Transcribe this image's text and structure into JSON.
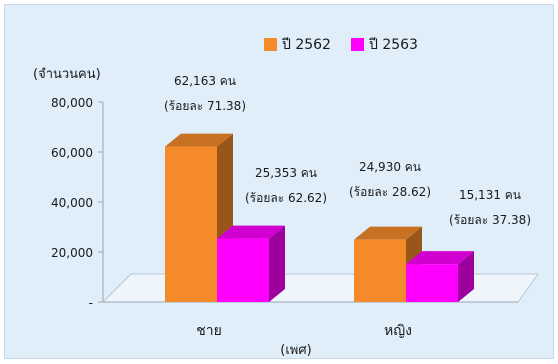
{
  "chart_data": {
    "type": "bar",
    "title": "",
    "ylabel": "(จำนวนคน)",
    "xlabel": "(เพศ)",
    "categories": [
      "ชาย",
      "หญิง"
    ],
    "ylim": [
      0,
      80000
    ],
    "yticks": [
      {
        "value": 80000,
        "label": "80,000"
      },
      {
        "value": 60000,
        "label": "60,000"
      },
      {
        "value": 40000,
        "label": "40,000"
      },
      {
        "value": 20000,
        "label": "20,000"
      },
      {
        "value": 0,
        "label": "-"
      }
    ],
    "grid": false,
    "legend_position": "top-right",
    "series": [
      {
        "name": "ปี 2562",
        "color": "#f58a2b",
        "values": [
          62163,
          24930
        ],
        "data_labels": [
          "62,163 คน",
          "24,930 คน"
        ],
        "percent_labels": [
          "(ร้อยละ 71.38)",
          "(ร้อยละ 28.62)"
        ]
      },
      {
        "name": "ปี 2563",
        "color": "#ff00ff",
        "values": [
          25353,
          15131
        ],
        "data_labels": [
          "25,353 คน",
          "15,131  คน"
        ],
        "percent_labels": [
          "(ร้อยละ 62.62)",
          "(ร้อยละ 37.38)"
        ]
      }
    ]
  }
}
